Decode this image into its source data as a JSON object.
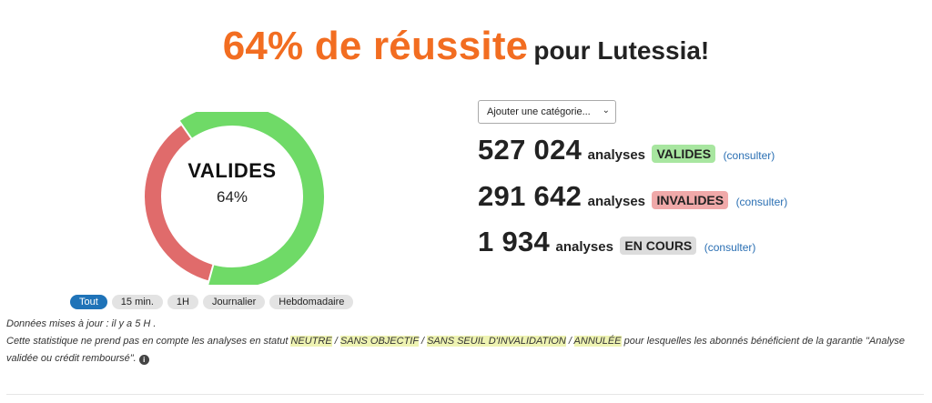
{
  "headline": {
    "highlight": "64% de réussite",
    "rest": "pour Lutessia!"
  },
  "donut": {
    "label": "VALIDES",
    "percent_text": "64%",
    "valid_fraction": 0.64,
    "colors": {
      "valid": "#6fda67",
      "invalid": "#e06b6b"
    }
  },
  "category_select": {
    "selected": "Ajouter une catégorie..."
  },
  "stats": [
    {
      "number": "527 024",
      "word": "analyses",
      "badge": "VALIDES",
      "badge_color": "#a8e6a0",
      "link": "(consulter)"
    },
    {
      "number": "291 642",
      "word": "analyses",
      "badge": "INVALIDES",
      "badge_color": "#f0a9a9",
      "link": "(consulter)"
    },
    {
      "number": "1 934",
      "word": "analyses",
      "badge": "EN COURS",
      "badge_color": "#dcdcdc",
      "link": "(consulter)"
    }
  ],
  "filters": [
    {
      "label": "Tout",
      "active": true
    },
    {
      "label": "15 min.",
      "active": false
    },
    {
      "label": "1H",
      "active": false
    },
    {
      "label": "Journalier",
      "active": false
    },
    {
      "label": "Hebdomadaire",
      "active": false
    }
  ],
  "notes": {
    "updated": "Données mises à jour : il y a 5 H .",
    "stat_prefix": "Cette statistique ne prend pas en compte les analyses en statut",
    "status_neutre": "NEUTRE",
    "sep1": "/",
    "status_sans_objectif": "SANS OBJECTIF",
    "sep2": "/",
    "status_sans_seuil": "SANS SEUIL D'INVALIDATION",
    "sep3": "/",
    "status_annulee": "ANNULÉE",
    "stat_suffix": "pour lesquelles les abonnés bénéficient de la garantie \"Analyse validée ou crédit remboursé\".",
    "info_icon": "i"
  }
}
